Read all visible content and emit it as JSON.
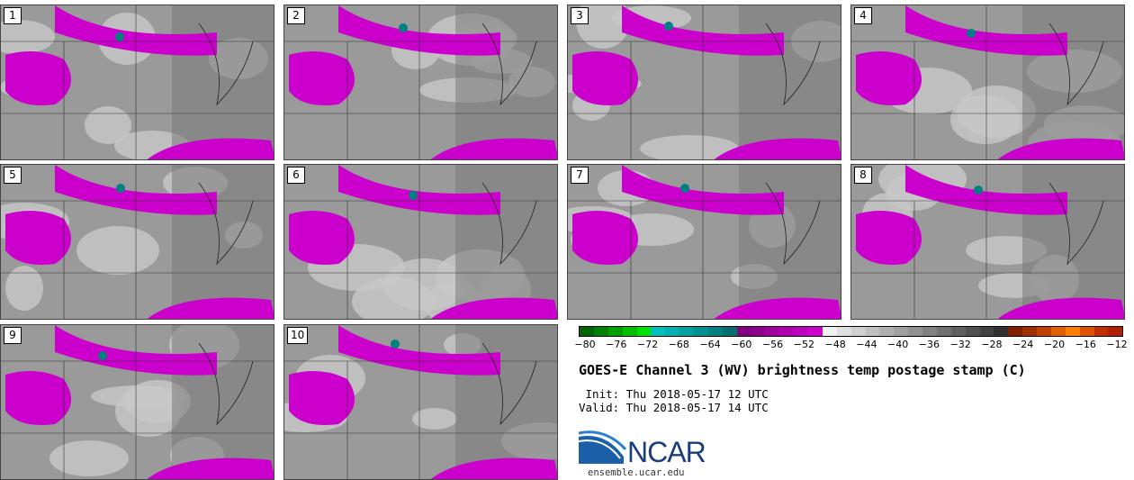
{
  "panels": [
    {
      "number": "1"
    },
    {
      "number": "2"
    },
    {
      "number": "3"
    },
    {
      "number": "4"
    },
    {
      "number": "5"
    },
    {
      "number": "6"
    },
    {
      "number": "7"
    },
    {
      "number": "8"
    },
    {
      "number": "9"
    },
    {
      "number": "10"
    }
  ],
  "colorbar": {
    "colors": [
      "#006400",
      "#008000",
      "#00a000",
      "#00c000",
      "#00e000",
      "#00c0c0",
      "#00b0b0",
      "#00a0a0",
      "#009090",
      "#008080",
      "#007070",
      "#800080",
      "#900090",
      "#a000a0",
      "#b000b0",
      "#c000c0",
      "#d000d0",
      "#f0f0f0",
      "#e0e0e0",
      "#d0d0d0",
      "#c0c0c0",
      "#b0b0b0",
      "#a0a0a0",
      "#909090",
      "#808080",
      "#707070",
      "#606060",
      "#505050",
      "#404040",
      "#303030",
      "#802000",
      "#a03000",
      "#c04000",
      "#e06000",
      "#ff8000",
      "#e05000",
      "#c03000",
      "#b02000"
    ],
    "tick_labels": [
      "−80",
      "−76",
      "−72",
      "−68",
      "−64",
      "−60",
      "−56",
      "−52",
      "−48",
      "−44",
      "−40",
      "−36",
      "−32",
      "−28",
      "−24",
      "−20",
      "−16",
      "−12"
    ]
  },
  "title": "GOES-E Channel 3 (WV) brightness temp postage stamp (C)",
  "init_line": " Init: Thu 2018-05-17 12 UTC",
  "valid_line": "Valid: Thu 2018-05-17 14 UTC",
  "logo": {
    "text": "NCAR",
    "url": "ensemble.ucar.edu"
  }
}
